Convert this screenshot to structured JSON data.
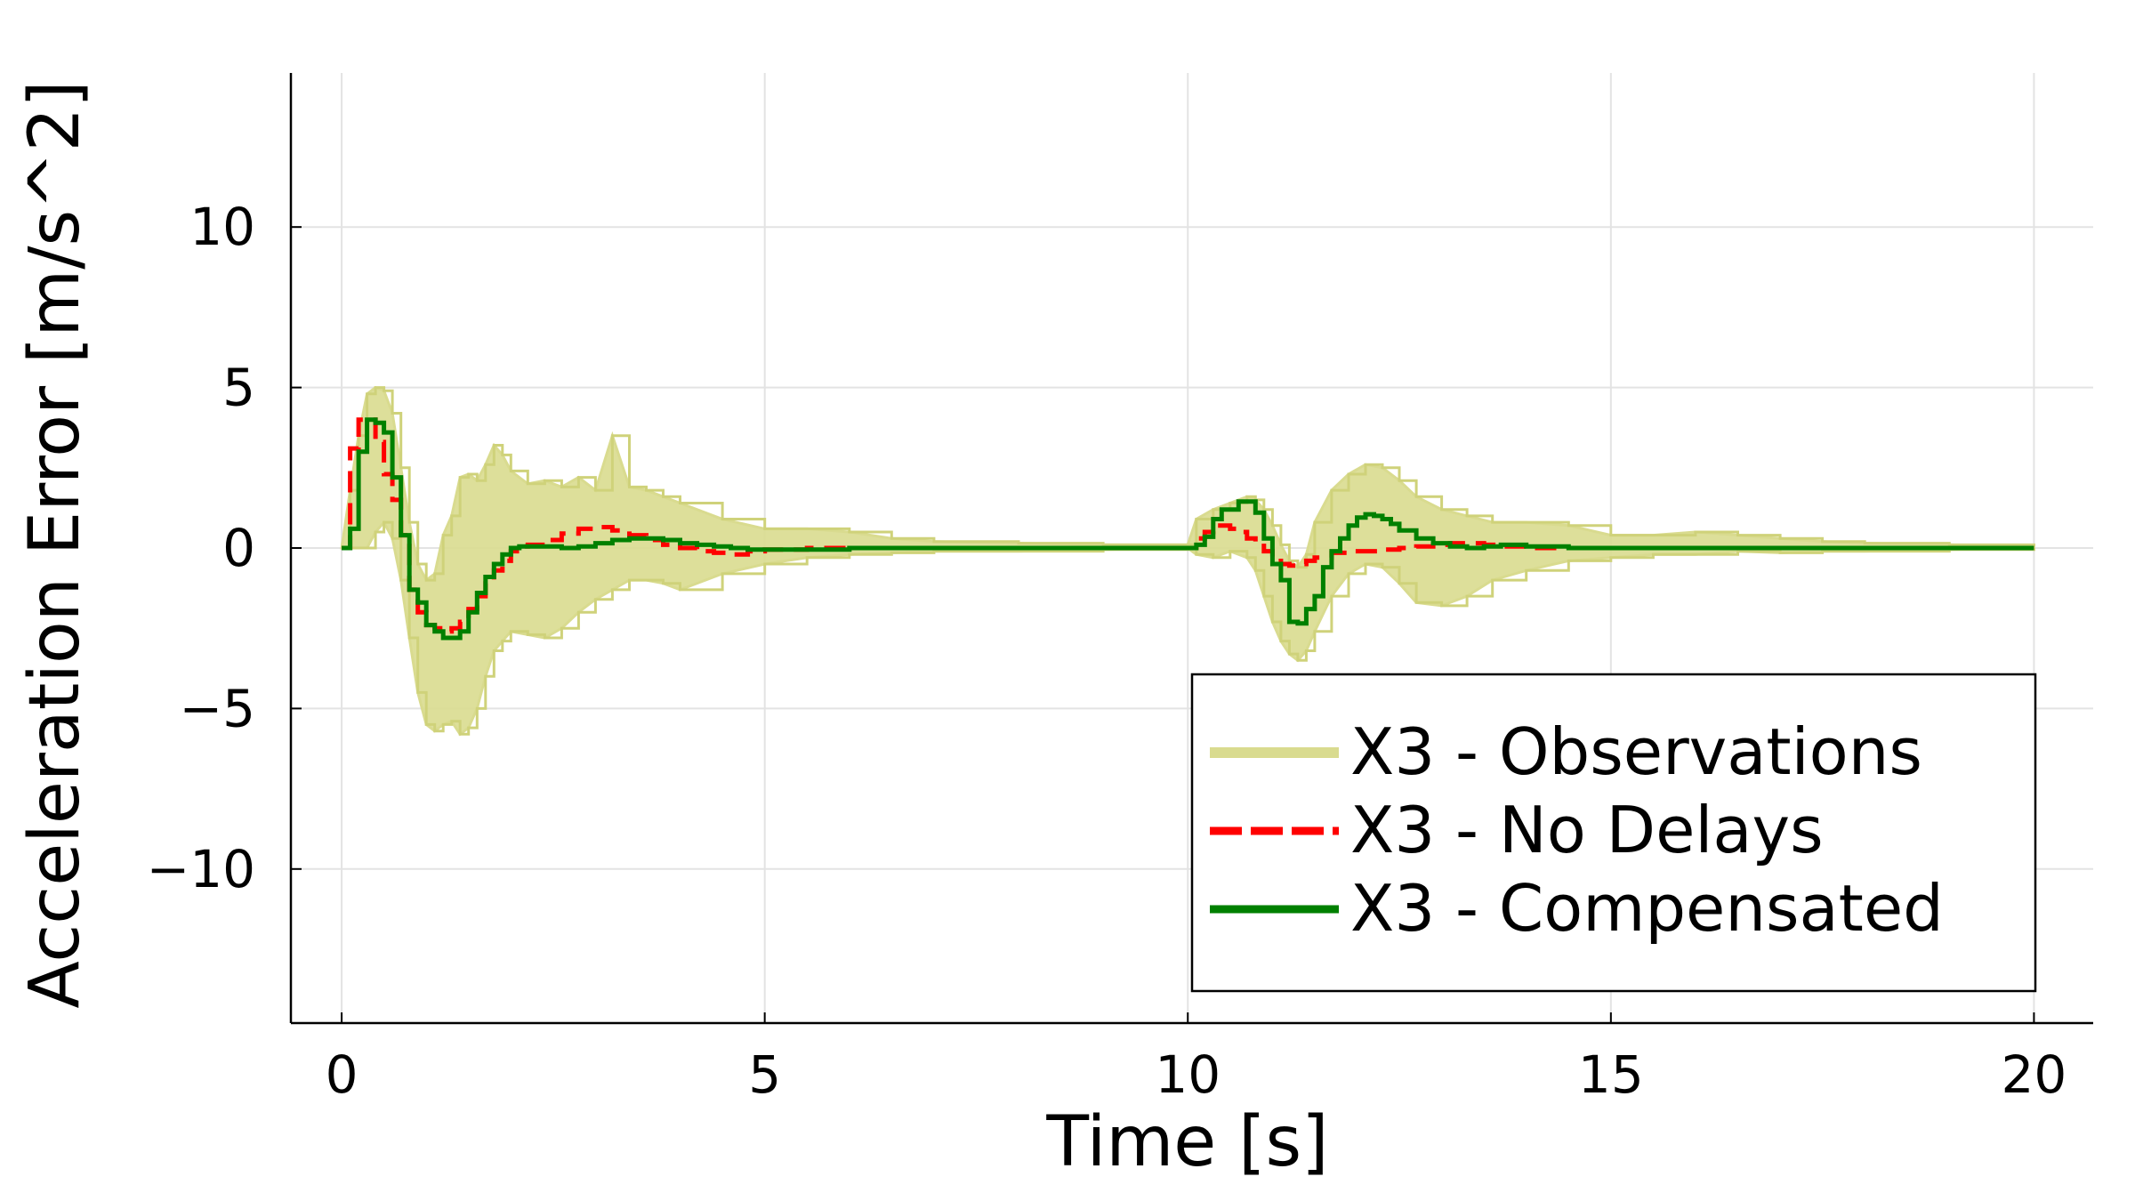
{
  "chart_data": {
    "type": "line",
    "xlabel": "Time [s]",
    "ylabel": "Acceleration Error [m/s^2]",
    "xlim": [
      -0.6,
      20.7
    ],
    "ylim": [
      -14.8,
      14.8
    ],
    "x_ticks": [
      0,
      5,
      10,
      15,
      20
    ],
    "x_tick_labels": [
      "0",
      "5",
      "10",
      "15",
      "20"
    ],
    "y_ticks": [
      -10,
      -5,
      0,
      5,
      10
    ],
    "y_tick_labels": [
      "−10",
      "−5",
      "0",
      "5",
      "10"
    ],
    "grid": true,
    "legend_position": "bottom-right",
    "series": [
      {
        "name": "X3 - Observations",
        "color": "#d9db8f",
        "style": "band",
        "x": [
          0,
          0.1,
          0.2,
          0.3,
          0.4,
          0.5,
          0.6,
          0.7,
          0.8,
          0.9,
          1.0,
          1.1,
          1.2,
          1.3,
          1.4,
          1.5,
          1.6,
          1.7,
          1.8,
          1.9,
          2.0,
          2.2,
          2.4,
          2.6,
          2.8,
          3.0,
          3.2,
          3.4,
          3.6,
          3.8,
          4.0,
          4.5,
          5.0,
          5.5,
          6.0,
          6.5,
          7.0,
          8.0,
          9.0,
          10.0,
          10.1,
          10.3,
          10.5,
          10.7,
          10.8,
          10.9,
          11.0,
          11.1,
          11.2,
          11.3,
          11.4,
          11.5,
          11.7,
          11.9,
          12.1,
          12.3,
          12.5,
          12.7,
          13.0,
          13.3,
          13.6,
          14.0,
          14.5,
          15.0,
          15.5,
          16.0,
          16.5,
          17.0,
          17.5,
          18.0,
          19.0,
          20.0
        ],
        "upper": [
          0,
          1.8,
          3.5,
          4.8,
          5.0,
          4.9,
          4.2,
          2.5,
          0.8,
          -0.5,
          -1.0,
          -0.8,
          0.4,
          1.0,
          2.2,
          2.3,
          2.1,
          2.6,
          3.2,
          2.9,
          2.4,
          2.0,
          2.1,
          1.9,
          2.2,
          1.8,
          3.5,
          1.9,
          1.8,
          1.6,
          1.4,
          0.9,
          0.6,
          0.6,
          0.5,
          0.3,
          0.2,
          0.15,
          0.1,
          0.1,
          0.9,
          1.2,
          1.4,
          1.6,
          1.5,
          1.2,
          0.7,
          0.1,
          -0.4,
          -0.6,
          -0.2,
          0.8,
          1.8,
          2.3,
          2.6,
          2.5,
          2.1,
          1.6,
          1.2,
          1.0,
          0.8,
          0.8,
          0.7,
          0.4,
          0.4,
          0.5,
          0.4,
          0.3,
          0.2,
          0.15,
          0.1,
          0.05
        ],
        "lower": [
          0,
          0,
          0,
          0,
          0.5,
          0.8,
          0.3,
          -1.0,
          -2.8,
          -4.5,
          -5.5,
          -5.7,
          -5.5,
          -5.4,
          -5.8,
          -5.6,
          -5.0,
          -4.0,
          -3.2,
          -2.9,
          -2.6,
          -2.7,
          -2.8,
          -2.5,
          -2.0,
          -1.6,
          -1.3,
          -1.0,
          -1.0,
          -1.1,
          -1.3,
          -0.8,
          -0.5,
          -0.3,
          -0.2,
          -0.15,
          -0.1,
          -0.1,
          -0.05,
          0,
          -0.2,
          -0.3,
          -0.1,
          -0.3,
          -0.7,
          -1.5,
          -2.3,
          -2.9,
          -3.3,
          -3.5,
          -3.2,
          -2.6,
          -1.5,
          -0.8,
          -0.5,
          -0.6,
          -1.1,
          -1.7,
          -1.8,
          -1.5,
          -1.0,
          -0.7,
          -0.4,
          -0.3,
          -0.2,
          -0.2,
          -0.1,
          -0.15,
          -0.1,
          -0.1,
          -0.05,
          0
        ]
      },
      {
        "name": "X3 - No Delays",
        "color": "#ff0000",
        "style": "dashed",
        "x": [
          0,
          0.1,
          0.2,
          0.3,
          0.4,
          0.5,
          0.6,
          0.7,
          0.8,
          0.9,
          1.0,
          1.1,
          1.2,
          1.3,
          1.4,
          1.5,
          1.6,
          1.7,
          1.8,
          1.9,
          2.0,
          2.1,
          2.2,
          2.4,
          2.6,
          2.8,
          3.0,
          3.2,
          3.4,
          3.6,
          3.8,
          4.0,
          4.2,
          4.4,
          4.6,
          4.8,
          5.0,
          5.5,
          6.0,
          7.0,
          8.0,
          9.0,
          10.0,
          10.1,
          10.2,
          10.3,
          10.4,
          10.5,
          10.6,
          10.7,
          10.8,
          10.9,
          11.0,
          11.1,
          11.2,
          11.3,
          11.4,
          11.5,
          11.7,
          11.9,
          12.1,
          12.3,
          12.5,
          12.7,
          12.9,
          13.1,
          13.3,
          13.5,
          13.7,
          14.0,
          14.5,
          15.0,
          16.0,
          17.0,
          18.0,
          19.0,
          20.0
        ],
        "y": [
          0,
          3.1,
          4.0,
          4.0,
          3.3,
          2.3,
          1.5,
          0.4,
          -1.3,
          -2.0,
          -2.4,
          -2.5,
          -2.6,
          -2.5,
          -2.3,
          -1.9,
          -1.5,
          -1.1,
          -0.7,
          -0.4,
          -0.1,
          0.05,
          0.1,
          0.25,
          0.45,
          0.6,
          0.65,
          0.55,
          0.4,
          0.25,
          0.1,
          0.0,
          -0.1,
          -0.15,
          -0.2,
          -0.1,
          -0.05,
          0,
          0,
          0,
          0,
          0,
          0,
          0.3,
          0.5,
          0.7,
          0.7,
          0.6,
          0.5,
          0.3,
          0.2,
          -0.1,
          -0.3,
          -0.5,
          -0.55,
          -0.5,
          -0.4,
          -0.3,
          -0.15,
          -0.1,
          -0.1,
          -0.05,
          0.0,
          0.05,
          0.1,
          0.15,
          0.15,
          0.1,
          0.05,
          0,
          0,
          0,
          0,
          0,
          0,
          0,
          0
        ]
      },
      {
        "name": "X3 - Compensated",
        "color": "#008000",
        "style": "solid",
        "x": [
          0,
          0.1,
          0.2,
          0.3,
          0.4,
          0.5,
          0.6,
          0.7,
          0.8,
          0.9,
          1.0,
          1.1,
          1.2,
          1.3,
          1.4,
          1.5,
          1.6,
          1.7,
          1.8,
          1.9,
          2.0,
          2.1,
          2.2,
          2.4,
          2.6,
          2.8,
          3.0,
          3.2,
          3.4,
          3.6,
          3.8,
          4.0,
          4.2,
          4.4,
          4.6,
          4.8,
          5.0,
          5.5,
          6.0,
          7.0,
          8.0,
          9.0,
          10.0,
          10.1,
          10.2,
          10.3,
          10.4,
          10.5,
          10.6,
          10.7,
          10.8,
          10.9,
          11.0,
          11.1,
          11.2,
          11.3,
          11.4,
          11.5,
          11.6,
          11.7,
          11.8,
          11.9,
          12.0,
          12.1,
          12.2,
          12.3,
          12.4,
          12.5,
          12.7,
          12.9,
          13.1,
          13.3,
          13.5,
          13.7,
          14.0,
          14.5,
          15.0,
          16.0,
          17.0,
          18.0,
          19.0,
          20.0
        ],
        "y": [
          0,
          0.6,
          3.0,
          4.0,
          3.9,
          3.6,
          2.2,
          0.4,
          -1.3,
          -1.7,
          -2.4,
          -2.6,
          -2.8,
          -2.8,
          -2.6,
          -2.0,
          -1.4,
          -0.9,
          -0.5,
          -0.2,
          0.0,
          0.05,
          0.05,
          0.05,
          0.0,
          0.05,
          0.15,
          0.25,
          0.3,
          0.3,
          0.25,
          0.15,
          0.1,
          0.05,
          0.0,
          -0.05,
          -0.05,
          -0.05,
          0,
          0,
          0,
          0,
          0,
          0.1,
          0.35,
          0.9,
          1.2,
          1.2,
          1.45,
          1.45,
          1.1,
          0.3,
          -0.5,
          -1.0,
          -2.3,
          -2.35,
          -1.9,
          -1.5,
          -0.6,
          -0.1,
          0.3,
          0.7,
          0.95,
          1.05,
          1.0,
          0.9,
          0.75,
          0.55,
          0.3,
          0.15,
          0.05,
          0.0,
          0.05,
          0.1,
          0.05,
          0,
          0,
          0,
          0,
          0,
          0,
          0
        ]
      }
    ]
  }
}
